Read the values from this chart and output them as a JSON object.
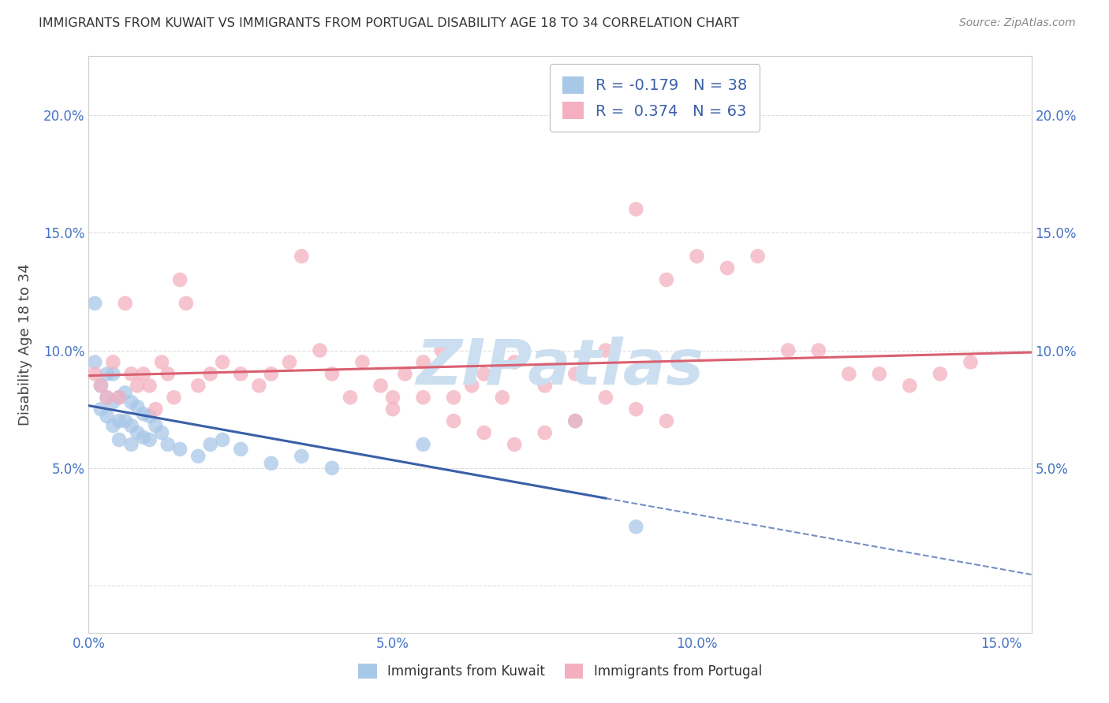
{
  "title": "IMMIGRANTS FROM KUWAIT VS IMMIGRANTS FROM PORTUGAL DISABILITY AGE 18 TO 34 CORRELATION CHART",
  "source": "Source: ZipAtlas.com",
  "ylabel": "Disability Age 18 to 34",
  "xlim": [
    0.0,
    0.155
  ],
  "ylim": [
    -0.02,
    0.225
  ],
  "x_ticks": [
    0.0,
    0.05,
    0.1,
    0.15
  ],
  "x_tick_labels": [
    "0.0%",
    "5.0%",
    "10.0%",
    "15.0%"
  ],
  "y_ticks": [
    0.0,
    0.05,
    0.1,
    0.15,
    0.2
  ],
  "y_tick_labels": [
    "",
    "5.0%",
    "10.0%",
    "15.0%",
    "20.0%"
  ],
  "kuwait_R": -0.179,
  "kuwait_N": 38,
  "portugal_R": 0.374,
  "portugal_N": 63,
  "kuwait_color": "#a8c8e8",
  "portugal_color": "#f4b0c0",
  "kuwait_line_color": "#3a5fa8",
  "portugal_line_color": "#d96070",
  "legend_text_color": "#3a5fa8",
  "title_color": "#333333",
  "source_color": "#888888",
  "tick_color": "#4472c4",
  "ylabel_color": "#444444",
  "watermark_color": "#ccdff0",
  "grid_color": "#dddddd",
  "background_color": "#ffffff",
  "kuwait_x": [
    0.001,
    0.001,
    0.002,
    0.002,
    0.003,
    0.003,
    0.003,
    0.004,
    0.004,
    0.004,
    0.005,
    0.005,
    0.005,
    0.006,
    0.006,
    0.007,
    0.007,
    0.007,
    0.008,
    0.008,
    0.009,
    0.009,
    0.01,
    0.01,
    0.011,
    0.012,
    0.013,
    0.015,
    0.018,
    0.02,
    0.022,
    0.025,
    0.03,
    0.035,
    0.04,
    0.055,
    0.08,
    0.09
  ],
  "kuwait_y": [
    0.12,
    0.095,
    0.085,
    0.075,
    0.09,
    0.08,
    0.072,
    0.09,
    0.078,
    0.068,
    0.08,
    0.07,
    0.062,
    0.082,
    0.07,
    0.078,
    0.068,
    0.06,
    0.076,
    0.065,
    0.073,
    0.063,
    0.072,
    0.062,
    0.068,
    0.065,
    0.06,
    0.058,
    0.055,
    0.06,
    0.062,
    0.058,
    0.052,
    0.055,
    0.05,
    0.06,
    0.07,
    0.025
  ],
  "portugal_x": [
    0.001,
    0.002,
    0.003,
    0.004,
    0.005,
    0.006,
    0.007,
    0.008,
    0.009,
    0.01,
    0.011,
    0.012,
    0.013,
    0.014,
    0.015,
    0.016,
    0.018,
    0.02,
    0.022,
    0.025,
    0.028,
    0.03,
    0.033,
    0.035,
    0.038,
    0.04,
    0.043,
    0.045,
    0.048,
    0.05,
    0.052,
    0.055,
    0.058,
    0.06,
    0.063,
    0.065,
    0.068,
    0.07,
    0.075,
    0.08,
    0.085,
    0.09,
    0.095,
    0.1,
    0.105,
    0.11,
    0.115,
    0.12,
    0.125,
    0.13,
    0.135,
    0.14,
    0.145,
    0.075,
    0.08,
    0.085,
    0.09,
    0.095,
    0.05,
    0.055,
    0.06,
    0.065,
    0.07
  ],
  "portugal_y": [
    0.09,
    0.085,
    0.08,
    0.095,
    0.08,
    0.12,
    0.09,
    0.085,
    0.09,
    0.085,
    0.075,
    0.095,
    0.09,
    0.08,
    0.13,
    0.12,
    0.085,
    0.09,
    0.095,
    0.09,
    0.085,
    0.09,
    0.095,
    0.14,
    0.1,
    0.09,
    0.08,
    0.095,
    0.085,
    0.08,
    0.09,
    0.095,
    0.1,
    0.08,
    0.085,
    0.09,
    0.08,
    0.095,
    0.085,
    0.09,
    0.1,
    0.16,
    0.13,
    0.14,
    0.135,
    0.14,
    0.1,
    0.1,
    0.09,
    0.09,
    0.085,
    0.09,
    0.095,
    0.065,
    0.07,
    0.08,
    0.075,
    0.07,
    0.075,
    0.08,
    0.07,
    0.065,
    0.06
  ]
}
